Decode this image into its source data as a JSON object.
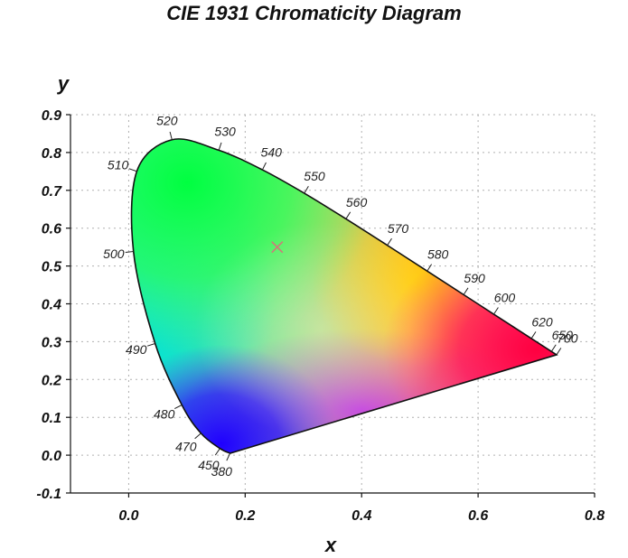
{
  "chart_data": {
    "type": "chromaticity-diagram",
    "title": "CIE 1931 Chromaticity Diagram",
    "xlabel": "x",
    "ylabel": "y",
    "xlim": [
      -0.1,
      0.8
    ],
    "ylim": [
      -0.1,
      0.9
    ],
    "grid": true,
    "x_ticks": [
      0.0,
      0.2,
      0.4,
      0.6,
      0.8
    ],
    "x_tick_labels": [
      "0.0",
      "0.2",
      "0.4",
      "0.6",
      "0.8"
    ],
    "y_ticks": [
      -0.1,
      0.0,
      0.1,
      0.2,
      0.3,
      0.4,
      0.5,
      0.6,
      0.7,
      0.8,
      0.9
    ],
    "y_tick_labels": [
      "-0.1",
      "0.0",
      "0.1",
      "0.2",
      "0.3",
      "0.4",
      "0.5",
      "0.6",
      "0.7",
      "0.8",
      "0.9"
    ],
    "spectral_locus": [
      {
        "nm": 380,
        "x": 0.1741,
        "y": 0.005
      },
      {
        "nm": 450,
        "x": 0.1566,
        "y": 0.0177
      },
      {
        "nm": 470,
        "x": 0.1241,
        "y": 0.0578
      },
      {
        "nm": 480,
        "x": 0.0913,
        "y": 0.1327
      },
      {
        "nm": 490,
        "x": 0.0454,
        "y": 0.295
      },
      {
        "nm": 500,
        "x": 0.0082,
        "y": 0.5384
      },
      {
        "nm": 510,
        "x": 0.0139,
        "y": 0.7502
      },
      {
        "nm": 520,
        "x": 0.0743,
        "y": 0.8338
      },
      {
        "nm": 530,
        "x": 0.1547,
        "y": 0.8059
      },
      {
        "nm": 540,
        "x": 0.2296,
        "y": 0.7543
      },
      {
        "nm": 550,
        "x": 0.3016,
        "y": 0.6923
      },
      {
        "nm": 560,
        "x": 0.3731,
        "y": 0.6245
      },
      {
        "nm": 570,
        "x": 0.4441,
        "y": 0.5547
      },
      {
        "nm": 580,
        "x": 0.5125,
        "y": 0.4866
      },
      {
        "nm": 590,
        "x": 0.5752,
        "y": 0.4242
      },
      {
        "nm": 600,
        "x": 0.627,
        "y": 0.3725
      },
      {
        "nm": 620,
        "x": 0.6915,
        "y": 0.3083
      },
      {
        "nm": 650,
        "x": 0.726,
        "y": 0.274
      },
      {
        "nm": 700,
        "x": 0.7347,
        "y": 0.2653
      }
    ],
    "wavelength_labels": [
      "380",
      "450",
      "470",
      "480",
      "490",
      "500",
      "510",
      "520",
      "530",
      "540",
      "550",
      "560",
      "570",
      "580",
      "590",
      "600",
      "620",
      "650",
      "700"
    ],
    "white_point": {
      "x": 0.255,
      "y": 0.55,
      "marker": "x"
    },
    "colors": {
      "locus_stroke": "#111111",
      "grid": "#b0b0b0",
      "white_point": "#d07a7a"
    }
  }
}
